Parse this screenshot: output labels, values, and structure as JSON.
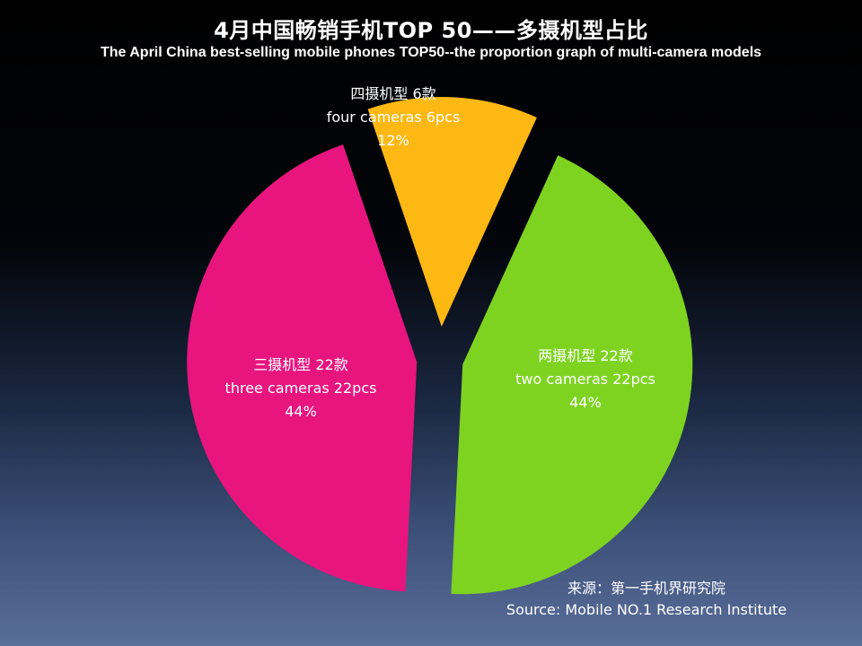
{
  "title_cn": "4月中国畅销手机TOP 50——多摄机型占比",
  "title_en": "The April China best-selling mobile phones TOP50--the proportion graph of multi-camera models",
  "source_cn": "来源：第一手机界研究院",
  "source_en": "Source: Mobile NO.1 Research Institute",
  "chart_data": {
    "type": "pie",
    "title": "4月中国畅销手机TOP 50——多摄机型占比",
    "subtitle": "The April China best-selling mobile phones TOP50--the proportion graph of multi-camera models",
    "exploded": true,
    "slices": [
      {
        "label_cn": "两摄机型 22款",
        "label_en": "two cameras 22pcs",
        "count": 22,
        "percent_label": "44%",
        "value": 44,
        "color": "#7ed321"
      },
      {
        "label_cn": "三摄机型 22款",
        "label_en": "three cameras 22pcs",
        "count": 22,
        "percent_label": "44%",
        "value": 44,
        "color": "#e8157f"
      },
      {
        "label_cn": "四摄机型 6款",
        "label_en": "four cameras 6pcs",
        "count": 6,
        "percent_label": "12%",
        "value": 12,
        "color": "#fdb813"
      }
    ]
  }
}
